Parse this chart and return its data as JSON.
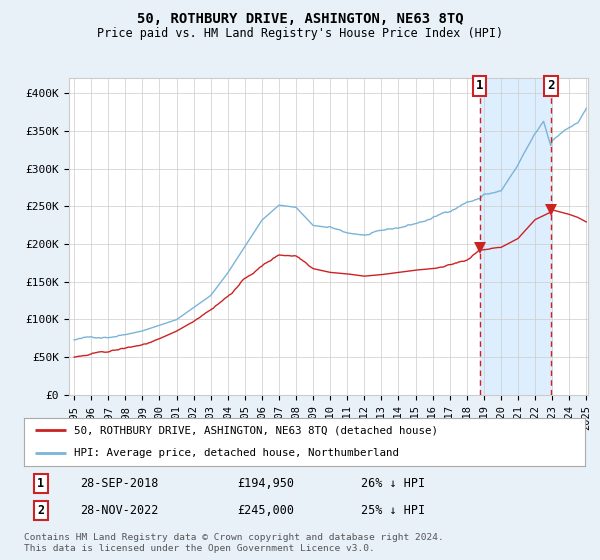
{
  "title": "50, ROTHBURY DRIVE, ASHINGTON, NE63 8TQ",
  "subtitle": "Price paid vs. HM Land Registry's House Price Index (HPI)",
  "ylim": [
    0,
    420000
  ],
  "yticks": [
    0,
    50000,
    100000,
    150000,
    200000,
    250000,
    300000,
    350000,
    400000
  ],
  "ytick_labels": [
    "£0",
    "£50K",
    "£100K",
    "£150K",
    "£200K",
    "£250K",
    "£300K",
    "£350K",
    "£400K"
  ],
  "hpi_color": "#7ab4d8",
  "price_color": "#cc2222",
  "vline_color": "#cc2222",
  "shade_color": "#ddeeff",
  "marker1_year": 2018.75,
  "marker2_year": 2022.92,
  "marker1_price": 194950,
  "marker2_price": 245000,
  "transaction1": {
    "label": "1",
    "date": "28-SEP-2018",
    "price": "£194,950",
    "hpi": "26% ↓ HPI"
  },
  "transaction2": {
    "label": "2",
    "date": "28-NOV-2022",
    "price": "£245,000",
    "hpi": "25% ↓ HPI"
  },
  "legend_line1": "50, ROTHBURY DRIVE, ASHINGTON, NE63 8TQ (detached house)",
  "legend_line2": "HPI: Average price, detached house, Northumberland",
  "footer": "Contains HM Land Registry data © Crown copyright and database right 2024.\nThis data is licensed under the Open Government Licence v3.0.",
  "background_color": "#e8f0f8",
  "plot_bg_color": "#ffffff",
  "year_start": 1995,
  "year_end": 2025
}
